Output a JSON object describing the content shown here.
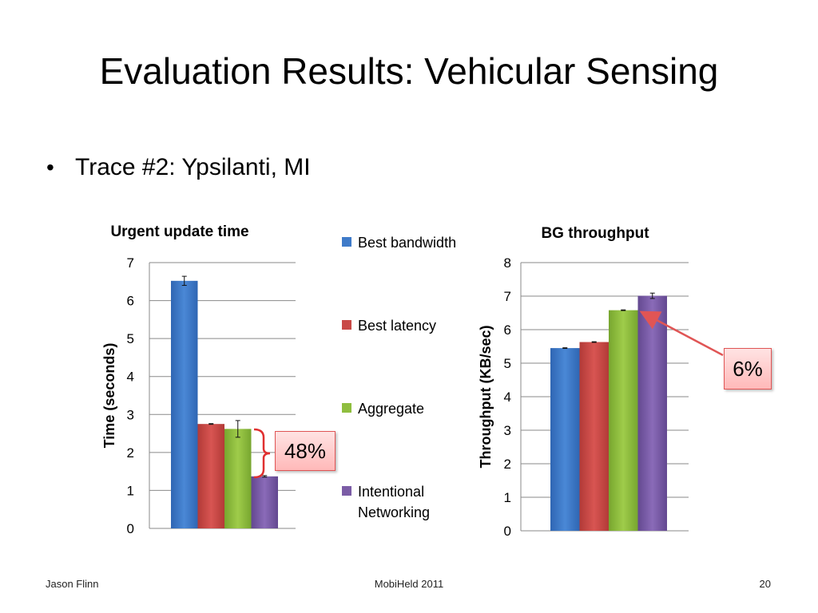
{
  "slide": {
    "title": "Evaluation Results: Vehicular Sensing",
    "bullet": "Trace #2: Ypsilanti, MI",
    "footer_left": "Jason Flinn",
    "footer_center": "MobiHeld 2011",
    "footer_right": "20"
  },
  "legend": [
    {
      "label": "Best bandwidth",
      "color": "#3f7bc9"
    },
    {
      "label": "Best latency",
      "color": "#c94a47"
    },
    {
      "label": "Aggregate",
      "color": "#8fbe3f"
    },
    {
      "label": "Intentional Networking",
      "color": "#7b5ca6"
    }
  ],
  "chart_data": [
    {
      "type": "bar",
      "title": "Urgent update time",
      "ylabel": "Time (seconds)",
      "ylim": [
        0,
        7
      ],
      "yticks": [
        0,
        1,
        2,
        3,
        4,
        5,
        6,
        7
      ],
      "grid": true,
      "series": [
        {
          "name": "Best bandwidth",
          "value": 6.52,
          "error": 0.12
        },
        {
          "name": "Best latency",
          "value": 2.75,
          "error": 0.01
        },
        {
          "name": "Aggregate",
          "value": 2.62,
          "error": 0.22
        },
        {
          "name": "Intentional Networking",
          "value": 1.37,
          "error": 0.02
        }
      ],
      "annotation": "48%"
    },
    {
      "type": "bar",
      "title": "BG throughput",
      "ylabel": "Throughput (KB/sec)",
      "ylim": [
        0,
        8
      ],
      "yticks": [
        0,
        1,
        2,
        3,
        4,
        5,
        6,
        7,
        8
      ],
      "grid": true,
      "series": [
        {
          "name": "Best bandwidth",
          "value": 5.45,
          "error": 0.01
        },
        {
          "name": "Best latency",
          "value": 5.63,
          "error": 0.01
        },
        {
          "name": "Aggregate",
          "value": 6.58,
          "error": 0.01
        },
        {
          "name": "Intentional Networking",
          "value": 7.01,
          "error": 0.08
        }
      ],
      "annotation": "6%"
    }
  ]
}
